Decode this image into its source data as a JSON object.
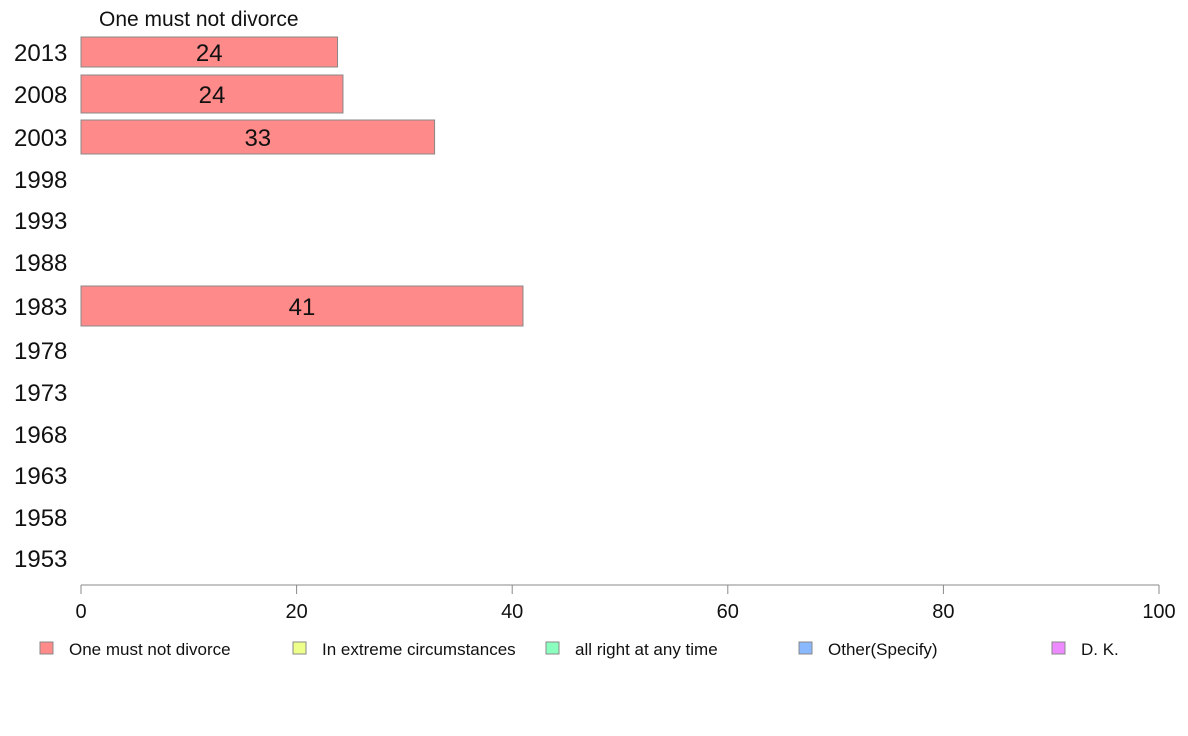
{
  "chart_data": {
    "type": "bar",
    "orientation": "horizontal",
    "categories": [
      "2013",
      "2008",
      "2003",
      "1998",
      "1993",
      "1988",
      "1983",
      "1978",
      "1973",
      "1968",
      "1963",
      "1958",
      "1953"
    ],
    "series": [
      {
        "name": "One must not divorce",
        "values": [
          24,
          24,
          33,
          null,
          null,
          null,
          41,
          null,
          null,
          null,
          null,
          null,
          null
        ],
        "color": "#ff8a8a"
      },
      {
        "name": "In extreme circumstances",
        "values": [
          null,
          null,
          null,
          null,
          null,
          null,
          null,
          null,
          null,
          null,
          null,
          null,
          null
        ],
        "color": "#eeff8a"
      },
      {
        "name": "all right at any time",
        "values": [
          null,
          null,
          null,
          null,
          null,
          null,
          null,
          null,
          null,
          null,
          null,
          null,
          null
        ],
        "color": "#8affbe"
      },
      {
        "name": "Other(Specify)",
        "values": [
          null,
          null,
          null,
          null,
          null,
          null,
          null,
          null,
          null,
          null,
          null,
          null,
          null
        ],
        "color": "#8ab8ff"
      },
      {
        "name": "D. K.",
        "values": [
          null,
          null,
          null,
          null,
          null,
          null,
          null,
          null,
          null,
          null,
          null,
          null,
          null
        ],
        "color": "#ee8aff"
      }
    ],
    "bar_values_precise": [
      23.8,
      24.3,
      32.8,
      null,
      null,
      null,
      41.0,
      null,
      null,
      null,
      null,
      null,
      null
    ],
    "data_labels": [
      "24",
      "24",
      "33",
      "",
      "",
      "",
      "41",
      "",
      "",
      "",
      "",
      "",
      ""
    ],
    "series_title": "One must not divorce",
    "xlim": [
      0,
      100
    ],
    "xticks": [
      0,
      20,
      40,
      60,
      80,
      100
    ],
    "grid": false,
    "legend_position": "bottom",
    "bar_border_color": "#888888",
    "axis_color": "#888888"
  }
}
